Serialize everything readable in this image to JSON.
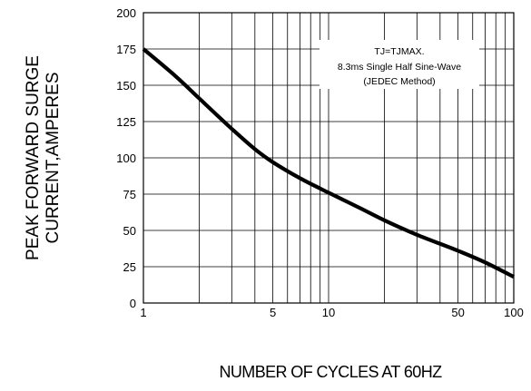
{
  "chart_data": {
    "type": "line",
    "xscale": "log",
    "xlim": [
      1,
      100
    ],
    "ylim": [
      0,
      200
    ],
    "grid": true,
    "xlabel": "NUMBER  OF  CYCLES AT 60HZ",
    "ylabel_line1": "PEAK FORWARD SURGE",
    "ylabel_line2": "CURRENT,AMPERES",
    "x_tick_labels": [
      "1",
      "5",
      "10",
      "50",
      "100"
    ],
    "x_tick_values": [
      1,
      5,
      10,
      50,
      100
    ],
    "y_tick_labels": [
      "0",
      "25",
      "50",
      "75",
      "100",
      "125",
      "150",
      "175",
      "200"
    ],
    "y_tick_values": [
      0,
      25,
      50,
      75,
      100,
      125,
      150,
      175,
      200
    ],
    "annotation": {
      "line1": "TJ=TJMAX.",
      "line2": "8.3ms Single Half Sine-Wave",
      "line3": "(JEDEC Method)"
    },
    "series": [
      {
        "x": [
          1,
          1.5,
          2,
          3,
          4,
          5,
          7,
          10,
          15,
          20,
          30,
          50,
          70,
          100
        ],
        "y": [
          175,
          156,
          141,
          120,
          106,
          97,
          86,
          76,
          65,
          57,
          47,
          36,
          28,
          18
        ]
      }
    ],
    "colors": {
      "line": "#000000",
      "grid": "#000000"
    }
  }
}
